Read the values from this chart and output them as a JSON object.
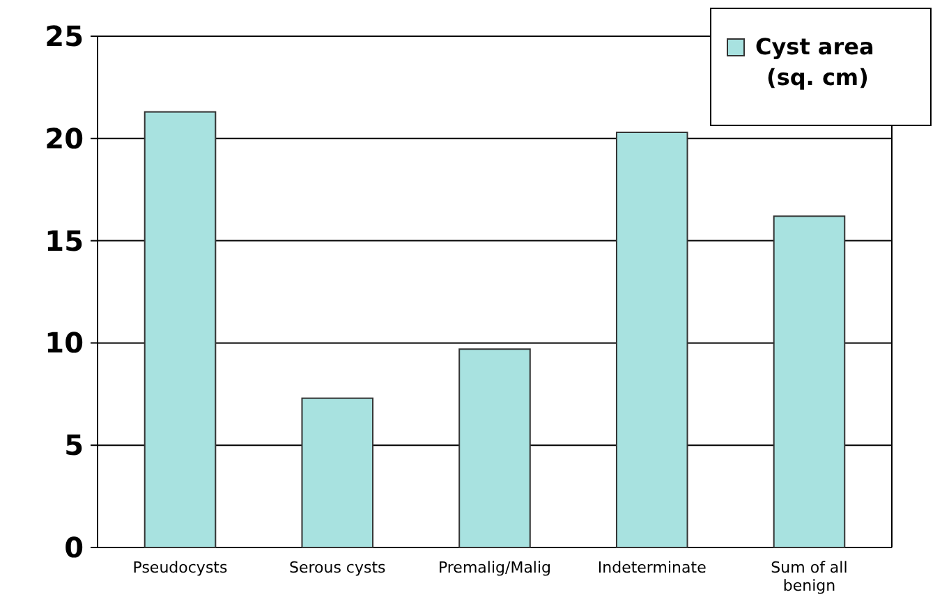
{
  "chart_data": {
    "type": "bar",
    "categories": [
      "Pseudocysts",
      "Serous cysts",
      "Premalig/Malig",
      "Indeterminate",
      "Sum of all benign"
    ],
    "series": [
      {
        "name": "Cyst area (sq. cm)",
        "color": "#a8e2e0",
        "values": [
          21.3,
          7.3,
          9.7,
          20.3,
          16.2
        ]
      }
    ],
    "ylim": [
      0,
      25
    ],
    "yticks": [
      0,
      5,
      10,
      15,
      20,
      25
    ],
    "grid": "y",
    "legend": "top right"
  }
}
